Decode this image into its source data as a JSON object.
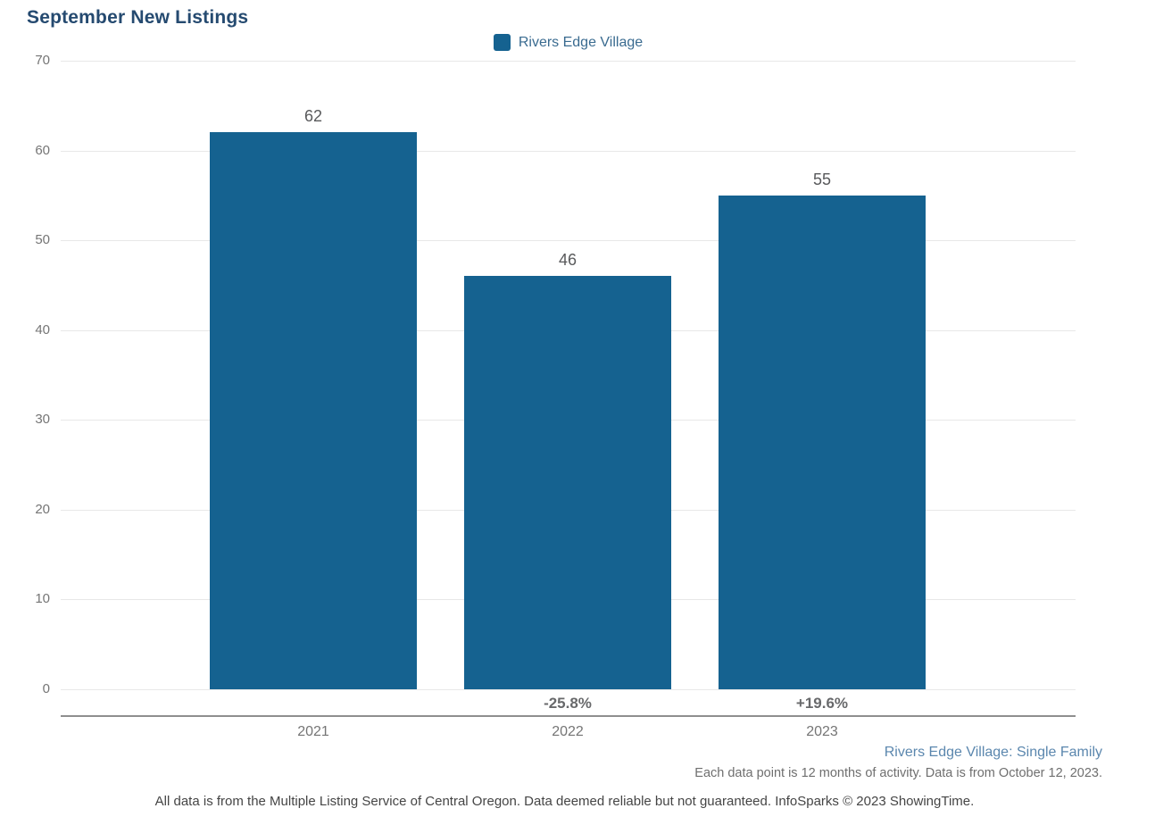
{
  "title": "September New Listings",
  "legend": {
    "label": "Rivers Edge Village",
    "swatch_color": "#156290"
  },
  "chart_data": {
    "type": "bar",
    "title": "September New Listings",
    "categories": [
      "2021",
      "2022",
      "2023"
    ],
    "series": [
      {
        "name": "Rivers Edge Village",
        "values": [
          62,
          46,
          55
        ]
      }
    ],
    "bar_value_labels": [
      "62",
      "46",
      "55"
    ],
    "pct_change_labels": [
      "",
      "-25.8%",
      "+19.6%"
    ],
    "yticks": [
      0,
      10,
      20,
      30,
      40,
      50,
      60,
      70
    ],
    "ylim": [
      0,
      70
    ],
    "xlabel": "",
    "ylabel": "",
    "grid": "horizontal",
    "legend_position": "top-center",
    "bar_color": "#156290"
  },
  "footer": {
    "series_descriptor": "Rivers Edge Village: Single Family",
    "data_note": "Each data point is 12 months of activity. Data is from October 12, 2023.",
    "disclaimer": "All data is from the Multiple Listing Service of Central Oregon. Data deemed reliable but not guaranteed. InfoSparks © 2023 ShowingTime."
  },
  "colors": {
    "bar": "#156290",
    "title_text": "#254a70",
    "legend_text": "#3a6b90",
    "gridline": "#e8e8e8",
    "axis_line": "#8f8f8f",
    "tick_text": "#757575",
    "value_text": "#58595b",
    "pct_text": "#68696b",
    "footer_blue": "#5b87ae"
  }
}
